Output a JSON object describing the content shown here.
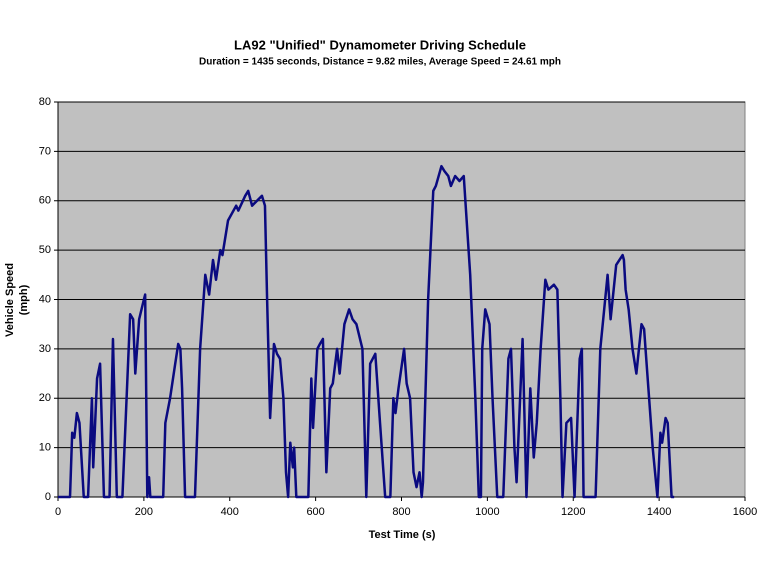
{
  "chart_data": {
    "type": "line",
    "title": "LA92 \"Unified\" Dynamometer Driving Schedule",
    "subtitle": "Duration = 1435 seconds, Distance = 9.82 miles, Average Speed = 24.61 mph",
    "xlabel": "Test Time (s)",
    "ylabel": [
      "Vehicle Speed",
      "(mph)"
    ],
    "xlim": [
      0,
      1600
    ],
    "xticks": [
      0,
      200,
      400,
      600,
      800,
      1000,
      1200,
      1400,
      1600
    ],
    "ylim": [
      0,
      80
    ],
    "yticks": [
      0,
      10,
      20,
      30,
      40,
      50,
      60,
      70,
      80
    ],
    "grid": true,
    "color": "#0a0a80",
    "x": [
      0,
      28,
      33,
      38,
      44,
      50,
      60,
      70,
      79,
      82,
      91,
      98,
      107,
      120,
      128,
      137,
      150,
      168,
      175,
      180,
      189,
      200,
      203,
      208,
      212,
      215,
      245,
      250,
      261,
      273,
      280,
      285,
      289,
      296,
      319,
      331,
      343,
      352,
      361,
      368,
      378,
      383,
      396,
      415,
      420,
      436,
      443,
      452,
      475,
      482,
      487,
      494,
      503,
      510,
      517,
      525,
      531,
      536,
      541,
      547,
      550,
      555,
      583,
      590,
      594,
      604,
      610,
      617,
      625,
      634,
      640,
      650,
      656,
      667,
      678,
      686,
      695,
      709,
      718,
      727,
      739,
      750,
      762,
      774,
      781,
      786,
      793,
      806,
      812,
      820,
      828,
      835,
      842,
      847,
      850,
      862,
      874,
      880,
      893,
      900,
      909,
      915,
      925,
      935,
      945,
      960,
      972,
      980,
      985,
      988,
      995,
      1005,
      1012,
      1023,
      1037,
      1049,
      1055,
      1063,
      1068,
      1082,
      1091,
      1100,
      1108,
      1115,
      1124,
      1135,
      1142,
      1155,
      1163,
      1170,
      1175,
      1184,
      1195,
      1203,
      1215,
      1220,
      1224,
      1252,
      1263,
      1280,
      1287,
      1300,
      1315,
      1318,
      1322,
      1329,
      1338,
      1347,
      1359,
      1365,
      1375,
      1385,
      1396,
      1403,
      1407,
      1415,
      1420,
      1429,
      1435
    ],
    "values": [
      0,
      0,
      13,
      12,
      17,
      15,
      0,
      0,
      20,
      6,
      24,
      27,
      0,
      0,
      32,
      0,
      0,
      37,
      36,
      25,
      36,
      40,
      41,
      0,
      4,
      0,
      0,
      15,
      20,
      27,
      31,
      30,
      22,
      0,
      0,
      30,
      45,
      41,
      48,
      44,
      50,
      49,
      56,
      59,
      58,
      61,
      62,
      59,
      61,
      59,
      40,
      16,
      31,
      29,
      28,
      20,
      5,
      0,
      11,
      6,
      10,
      0,
      0,
      24,
      14,
      30,
      31,
      32,
      5,
      22,
      23,
      30,
      25,
      35,
      38,
      36,
      35,
      30,
      0,
      27,
      29,
      15,
      0,
      0,
      20,
      17,
      22,
      30,
      23,
      20,
      5,
      2,
      5,
      0,
      3,
      40,
      62,
      63,
      67,
      66,
      65,
      63,
      65,
      64,
      65,
      45,
      20,
      0,
      0,
      30,
      38,
      35,
      20,
      0,
      0,
      28,
      30,
      10,
      3,
      32,
      0,
      22,
      8,
      15,
      30,
      44,
      42,
      43,
      42,
      20,
      0,
      15,
      16,
      0,
      28,
      30,
      0,
      0,
      30,
      45,
      36,
      47,
      49,
      48,
      42,
      38,
      30,
      25,
      35,
      34,
      22,
      10,
      0,
      13,
      11,
      16,
      15,
      0,
      0
    ]
  }
}
